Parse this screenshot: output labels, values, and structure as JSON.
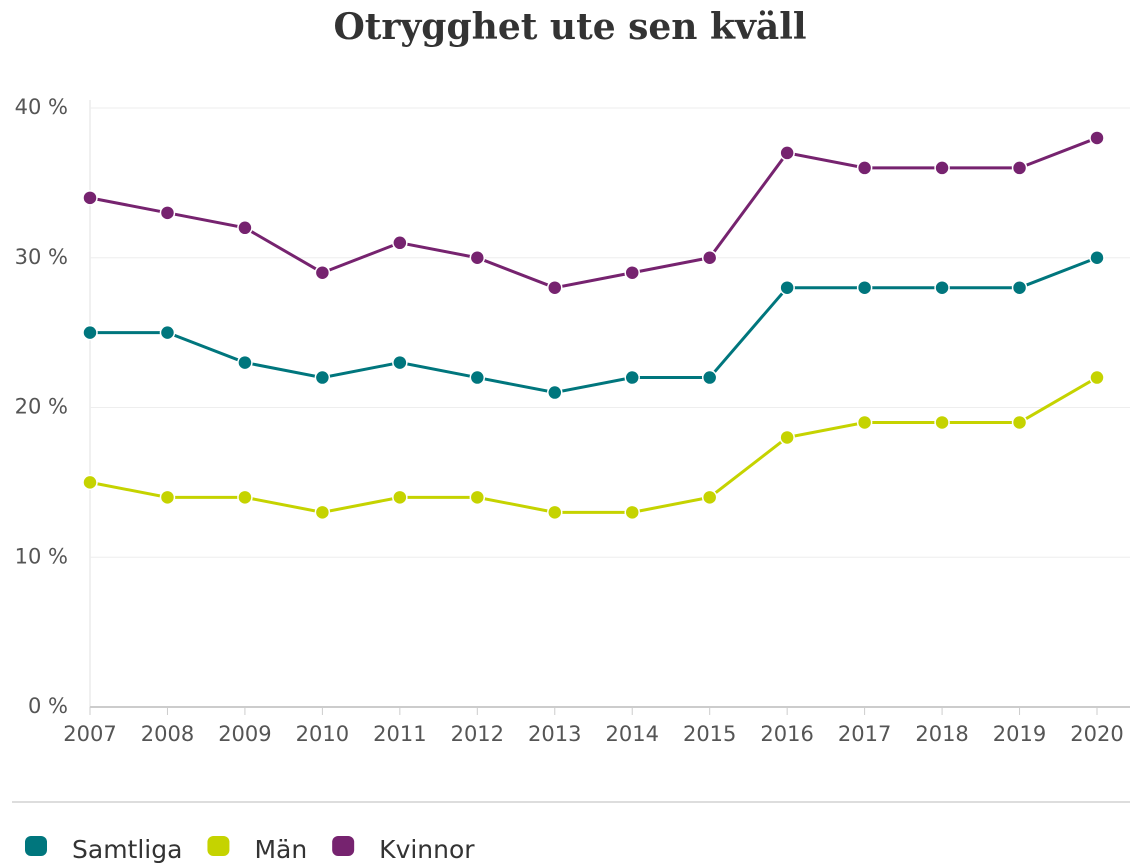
{
  "chart_data": {
    "type": "line",
    "title": "Otrygghet ute sen kväll",
    "categories": [
      "2007",
      "2008",
      "2009",
      "2010",
      "2011",
      "2012",
      "2013",
      "2014",
      "2015",
      "2016",
      "2017",
      "2018",
      "2019",
      "2020"
    ],
    "series": [
      {
        "name": "Samtliga",
        "color": "#00767d",
        "values": [
          25,
          25,
          23,
          22,
          23,
          22,
          21,
          22,
          22,
          28,
          28,
          28,
          28,
          30
        ]
      },
      {
        "name": "Män",
        "color": "#c5d300",
        "values": [
          15,
          14,
          14,
          13,
          14,
          14,
          13,
          13,
          14,
          18,
          19,
          19,
          19,
          22
        ]
      },
      {
        "name": "Kvinnor",
        "color": "#76236f",
        "values": [
          34,
          33,
          32,
          29,
          31,
          30,
          28,
          29,
          30,
          37,
          36,
          36,
          36,
          38
        ]
      }
    ],
    "ylim": [
      0,
      40
    ],
    "yticks": [
      {
        "value": 0,
        "label": "0 %"
      },
      {
        "value": 10,
        "label": "10 %"
      },
      {
        "value": 20,
        "label": "20 %"
      },
      {
        "value": 30,
        "label": "30 %"
      },
      {
        "value": 40,
        "label": "40 %"
      }
    ],
    "grid": true,
    "legend": "bottom"
  }
}
